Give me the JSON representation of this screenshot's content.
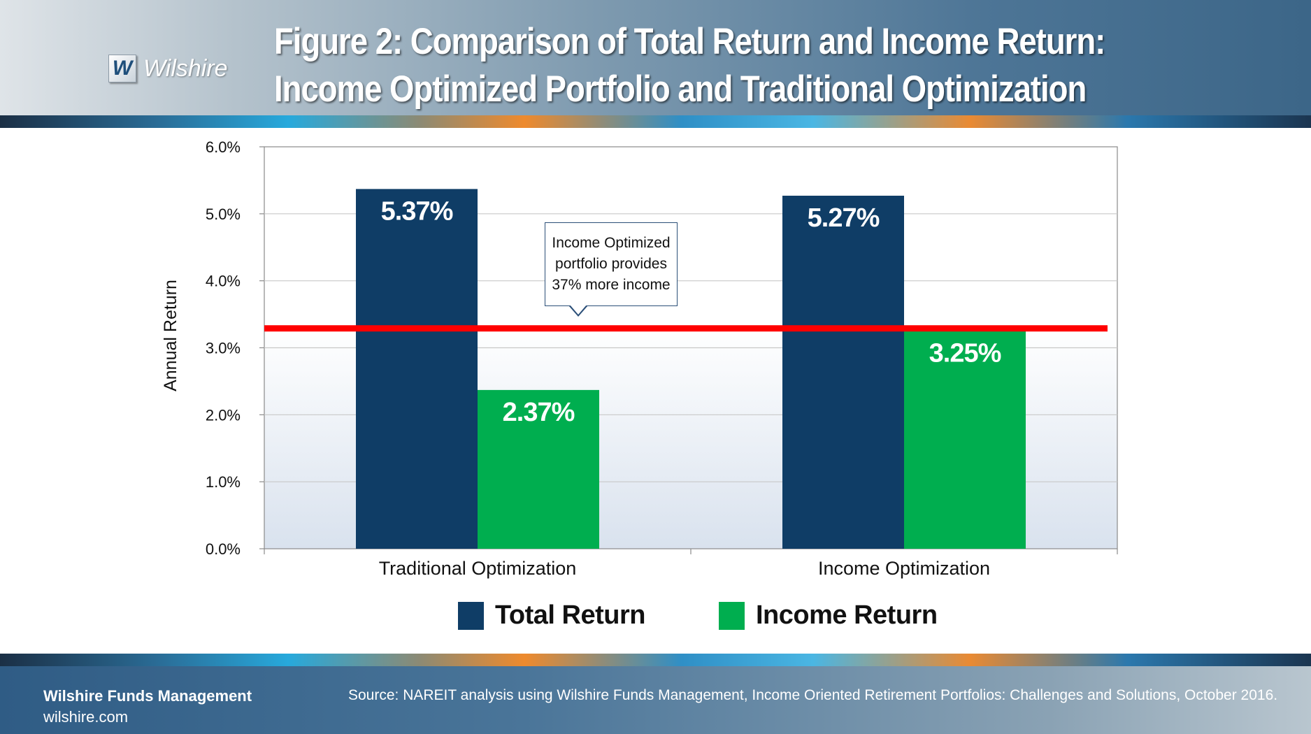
{
  "header": {
    "logo_mark": "W",
    "logo_text": "Wilshire",
    "title_line1": "Figure 2: Comparison of Total Return and Income Return:",
    "title_line2": "Income Optimized Portfolio and Traditional Optimization"
  },
  "chart_data": {
    "type": "bar",
    "ylabel": "Annual Return",
    "xlabel": "",
    "ylim": [
      0,
      6
    ],
    "yticks": [
      "0.0%",
      "1.0%",
      "2.0%",
      "3.0%",
      "4.0%",
      "5.0%",
      "6.0%"
    ],
    "categories": [
      "Traditional Optimization",
      "Income Optimization"
    ],
    "series": [
      {
        "name": "Total Return",
        "values": [
          5.37,
          5.27
        ],
        "labels": [
          "5.37%",
          "5.27%"
        ],
        "color": "#0f3d66"
      },
      {
        "name": "Income Return",
        "values": [
          2.37,
          3.25
        ],
        "labels": [
          "2.37%",
          "3.25%"
        ],
        "color": "#00ae4f"
      }
    ],
    "reference_line": {
      "value": 3.29,
      "color": "#ff0000"
    },
    "annotation": "Income Optimized\nportfolio provides\n37% more income",
    "grid": true,
    "legend": "bottom"
  },
  "footer": {
    "company": "Wilshire Funds Management",
    "website": "wilshire.com",
    "source": "Source: NAREIT analysis using Wilshire Funds Management, Income Oriented Retirement Portfolios: Challenges and Solutions, October 2016."
  }
}
